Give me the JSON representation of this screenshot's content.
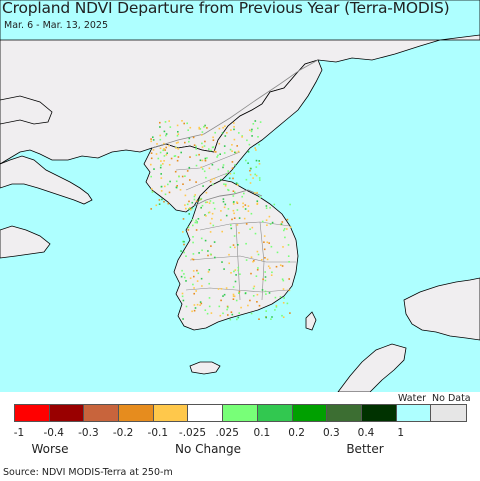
{
  "map": {
    "title": "Cropland NDVI Departure from Previous Year (Terra-MODIS)",
    "subtitle": "Mar. 6 - Mar. 13, 2025",
    "colors": {
      "water": "#aeffff",
      "land": "#f0eef0",
      "border": "#8a8a8a",
      "coast": "#000000"
    }
  },
  "legend": {
    "water_label": "Water",
    "nodata_label": "No Data",
    "swatches": [
      {
        "color": "#ff0000"
      },
      {
        "color": "#990000"
      },
      {
        "color": "#c8643c"
      },
      {
        "color": "#e68c1e"
      },
      {
        "color": "#ffc84b"
      },
      {
        "color": "#ffffff"
      },
      {
        "color": "#78ff78"
      },
      {
        "color": "#32c850"
      },
      {
        "color": "#00a000"
      },
      {
        "color": "#3c6e32"
      },
      {
        "color": "#003200"
      },
      {
        "color": "#aeffff"
      },
      {
        "color": "#e6e6e6"
      }
    ],
    "ticks": [
      "-1",
      "-0.4",
      "-0.3",
      "-0.2",
      "-0.1",
      "-.025",
      ".025",
      "0.1",
      "0.2",
      "0.3",
      "0.4",
      "1"
    ],
    "categories": {
      "worse": "Worse",
      "no_change": "No Change",
      "better": "Better"
    }
  },
  "source": "Source: NDVI MODIS-Terra at 250-m"
}
